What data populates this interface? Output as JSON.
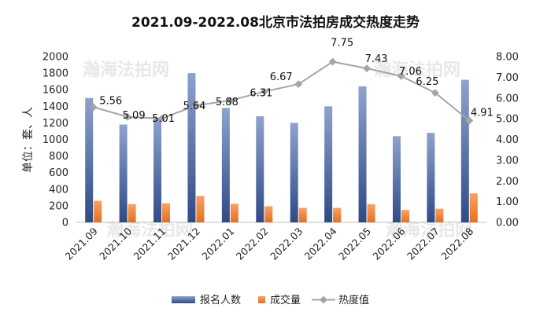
{
  "watermark": "瀚海法拍网",
  "chart_data": {
    "type": "bar+line",
    "title": "2021.09-2022.08北京市法拍房成交热度走势",
    "ylabel": "单位：套、人",
    "categories": [
      "2021.09",
      "2021.10",
      "2021.11",
      "2021.12",
      "2022.01",
      "2022.02",
      "2022.03",
      "2022.04",
      "2022.05",
      "2022.06",
      "2022.07",
      "2022.08"
    ],
    "ylim_left": [
      0,
      2000
    ],
    "left_ticks": [
      0,
      200,
      400,
      600,
      800,
      1000,
      1200,
      1400,
      1600,
      1800,
      2000
    ],
    "ylim_right": [
      0,
      8
    ],
    "right_ticks": [
      "0.00",
      "1.00",
      "2.00",
      "3.00",
      "4.00",
      "5.00",
      "6.00",
      "7.00",
      "8.00"
    ],
    "series": [
      {
        "name": "报名人数",
        "kind": "bar",
        "axis": "left",
        "color": "#5b73a6",
        "values": [
          1500,
          1180,
          1260,
          1800,
          1380,
          1280,
          1200,
          1400,
          1640,
          1040,
          1080,
          1720
        ]
      },
      {
        "name": "成交量",
        "kind": "bar",
        "axis": "left",
        "color": "#ed7d31",
        "values": [
          260,
          220,
          230,
          320,
          225,
          195,
          175,
          175,
          220,
          150,
          165,
          350
        ]
      },
      {
        "name": "热度值",
        "kind": "line",
        "axis": "right",
        "color": "#a5a5a5",
        "values": [
          5.56,
          5.09,
          5.01,
          5.64,
          5.88,
          6.31,
          6.67,
          7.75,
          7.43,
          7.06,
          6.25,
          4.91
        ],
        "labels": [
          "5.56",
          "5.09",
          "5.01",
          "5.64",
          "5.88",
          "6.31",
          "6.67",
          "7.75",
          "7.43",
          "7.06",
          "6.25",
          "4.91"
        ]
      }
    ],
    "legend_position": "bottom",
    "grid": false
  }
}
